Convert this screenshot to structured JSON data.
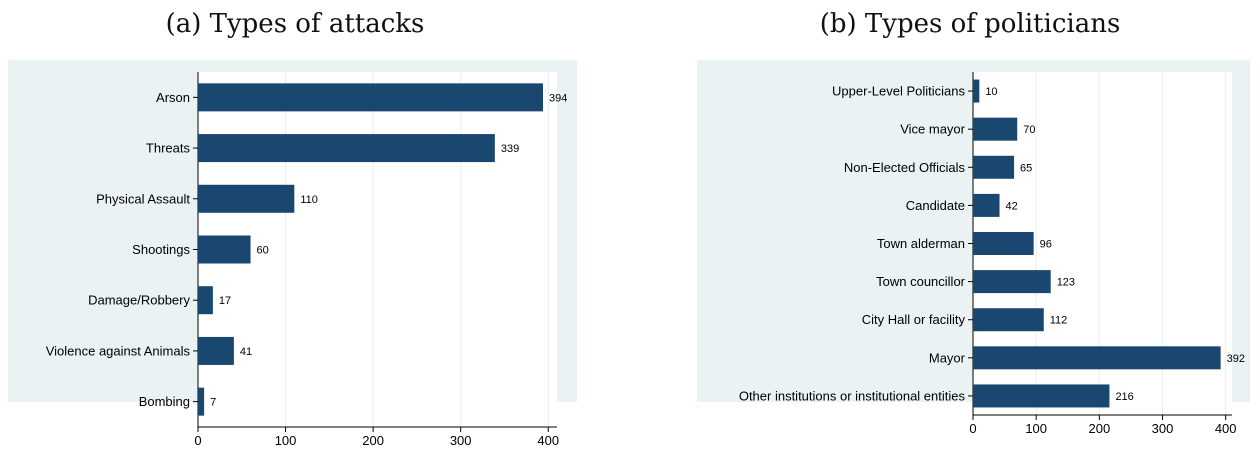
{
  "charts": [
    {
      "caption": "(a) Types of attacks",
      "chart_data": {
        "type": "bar",
        "orientation": "horizontal",
        "categories": [
          "Arson",
          "Threats",
          "Physical Assault",
          "Shootings",
          "Damage/Robbery",
          "Violence against Animals",
          "Bombing"
        ],
        "values": [
          394,
          339,
          110,
          60,
          17,
          41,
          7
        ],
        "xlim": [
          0,
          410
        ],
        "xticks": [
          0,
          100,
          200,
          300,
          400
        ],
        "grid": true,
        "bar_color": "#1a476f",
        "background_color": "#eaf2f3"
      }
    },
    {
      "caption": "(b) Types of politicians",
      "chart_data": {
        "type": "bar",
        "orientation": "horizontal",
        "categories": [
          "Upper-Level Politicians",
          "Vice mayor",
          "Non-Elected Officials",
          "Candidate",
          "Town alderman",
          "Town councillor",
          "City Hall or facility",
          "Mayor",
          "Other institutions or institutional entities"
        ],
        "values": [
          10,
          70,
          65,
          42,
          96,
          123,
          112,
          392,
          216
        ],
        "xlim": [
          0,
          410
        ],
        "xticks": [
          0,
          100,
          200,
          300,
          400
        ],
        "grid": true,
        "bar_color": "#1a476f",
        "background_color": "#eaf2f3"
      }
    }
  ]
}
